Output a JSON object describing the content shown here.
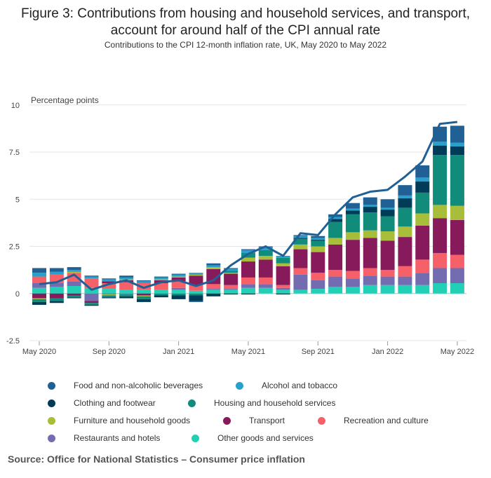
{
  "title": "Figure 3: Contributions from housing and household services, and transport, account for around half of the CPI annual rate",
  "subtitle": "Contributions to the CPI 12-month inflation rate, UK, May 2020 to May 2022",
  "source": "Source: Office for National Statistics – Consumer price inflation",
  "chart_data": {
    "type": "bar",
    "stacked": true,
    "ylabel": "Percentage points",
    "ylim": [
      -2.5,
      10
    ],
    "yticks": [
      "-2.5",
      "0",
      "2.5",
      "5",
      "7.5",
      "10"
    ],
    "xtick_labels": [
      "May 2020",
      "Sep 2020",
      "Jan 2021",
      "May 2021",
      "Sep 2021",
      "Jan 2022",
      "May 2022"
    ],
    "grid": true,
    "legend_position": "bottom",
    "categories": [
      "May 2020",
      "Jun 2020",
      "Jul 2020",
      "Aug 2020",
      "Sep 2020",
      "Oct 2020",
      "Nov 2020",
      "Dec 2020",
      "Jan 2021",
      "Feb 2021",
      "Mar 2021",
      "Apr 2021",
      "May 2021",
      "Jun 2021",
      "Jul 2021",
      "Aug 2021",
      "Sep 2021",
      "Oct 2021",
      "Nov 2021",
      "Dec 2021",
      "Jan 2022",
      "Feb 2022",
      "Mar 2022",
      "Apr 2022",
      "May 2022"
    ],
    "series": [
      {
        "name": "Other goods and services",
        "color": "#22d0b6",
        "values": [
          0.3,
          0.35,
          0.4,
          0.3,
          0.25,
          0.2,
          0.2,
          0.2,
          0.2,
          0.15,
          0.2,
          0.2,
          0.3,
          0.3,
          0.2,
          0.2,
          0.25,
          0.35,
          0.35,
          0.45,
          0.45,
          0.45,
          0.45,
          0.55,
          0.55
        ]
      },
      {
        "name": "Restaurants and hotels",
        "color": "#746cb1",
        "values": [
          0.25,
          0.2,
          0.25,
          -0.4,
          -0.05,
          -0.05,
          0.0,
          0.0,
          0.1,
          0.0,
          0.05,
          0.05,
          0.2,
          0.2,
          0.1,
          0.8,
          0.45,
          0.55,
          0.45,
          0.5,
          0.45,
          0.45,
          0.65,
          0.8,
          0.8
        ]
      },
      {
        "name": "Recreation and culture",
        "color": "#f66068",
        "values": [
          0.35,
          0.45,
          0.45,
          0.5,
          0.3,
          0.4,
          0.35,
          0.35,
          0.35,
          0.3,
          0.25,
          0.2,
          0.35,
          0.35,
          0.15,
          0.35,
          0.4,
          0.35,
          0.4,
          0.4,
          0.35,
          0.55,
          0.7,
          0.8,
          0.7
        ]
      },
      {
        "name": "Transport",
        "color": "#871a5b",
        "values": [
          -0.25,
          -0.25,
          -0.1,
          -0.1,
          0.1,
          0.1,
          -0.1,
          0.15,
          0.2,
          0.5,
          0.8,
          0.6,
          0.85,
          0.95,
          1.0,
          1.0,
          1.1,
          1.35,
          1.65,
          1.6,
          1.55,
          1.55,
          1.8,
          1.85,
          1.85
        ]
      },
      {
        "name": "Furniture and household goods",
        "color": "#a8bd3a",
        "values": [
          -0.05,
          0.0,
          0.05,
          0.0,
          -0.05,
          0.05,
          -0.05,
          0.05,
          0.05,
          0.05,
          0.1,
          0.05,
          0.2,
          0.2,
          0.15,
          0.25,
          0.3,
          0.35,
          0.4,
          0.4,
          0.5,
          0.55,
          0.65,
          0.7,
          0.75
        ]
      },
      {
        "name": "Housing and household services",
        "color": "#118c7b",
        "values": [
          -0.15,
          -0.15,
          -0.1,
          -0.1,
          -0.1,
          -0.1,
          -0.15,
          -0.1,
          -0.1,
          -0.1,
          0.0,
          0.1,
          0.25,
          0.3,
          0.3,
          0.3,
          0.3,
          0.85,
          0.95,
          0.95,
          0.8,
          1.0,
          1.1,
          2.65,
          2.7
        ]
      },
      {
        "name": "Clothing and footwear",
        "color": "#003c57",
        "values": [
          -0.15,
          -0.1,
          -0.05,
          -0.05,
          -0.05,
          -0.1,
          -0.15,
          -0.1,
          -0.2,
          -0.3,
          -0.15,
          -0.05,
          -0.05,
          0.0,
          -0.05,
          0.05,
          0.05,
          0.15,
          0.2,
          0.3,
          0.35,
          0.5,
          0.6,
          0.5,
          0.45
        ]
      },
      {
        "name": "Alcohol and tobacco",
        "color": "#27a0cc",
        "values": [
          0.2,
          0.15,
          0.1,
          0.1,
          0.1,
          0.1,
          0.1,
          0.1,
          0.1,
          0.1,
          0.1,
          0.1,
          0.15,
          0.15,
          0.1,
          0.1,
          0.1,
          0.1,
          0.1,
          0.1,
          0.1,
          0.15,
          0.2,
          0.2,
          0.2
        ]
      },
      {
        "name": "Food and non-alcoholic beverages",
        "color": "#206095",
        "values": [
          0.25,
          0.2,
          0.15,
          0.05,
          0.05,
          0.1,
          0.05,
          0.05,
          0.05,
          -0.05,
          0.1,
          0.05,
          0.05,
          0.05,
          0.0,
          0.05,
          0.1,
          0.15,
          0.3,
          0.4,
          0.45,
          0.55,
          0.65,
          0.8,
          0.9
        ]
      }
    ],
    "line": {
      "color": "#206095",
      "values": [
        0.5,
        0.6,
        1.0,
        0.2,
        0.5,
        0.7,
        0.3,
        0.6,
        0.7,
        0.4,
        0.7,
        1.5,
        2.1,
        2.5,
        2.0,
        3.2,
        3.1,
        4.2,
        5.1,
        5.4,
        5.5,
        6.2,
        7.0,
        9.0,
        9.1
      ]
    },
    "legend": [
      "Food and non-alcoholic beverages",
      "Alcohol and tobacco",
      "Clothing and footwear",
      "Housing and household services",
      "Furniture and household goods",
      "Transport",
      "Recreation and culture",
      "Restaurants and hotels",
      "Other goods and services"
    ]
  }
}
